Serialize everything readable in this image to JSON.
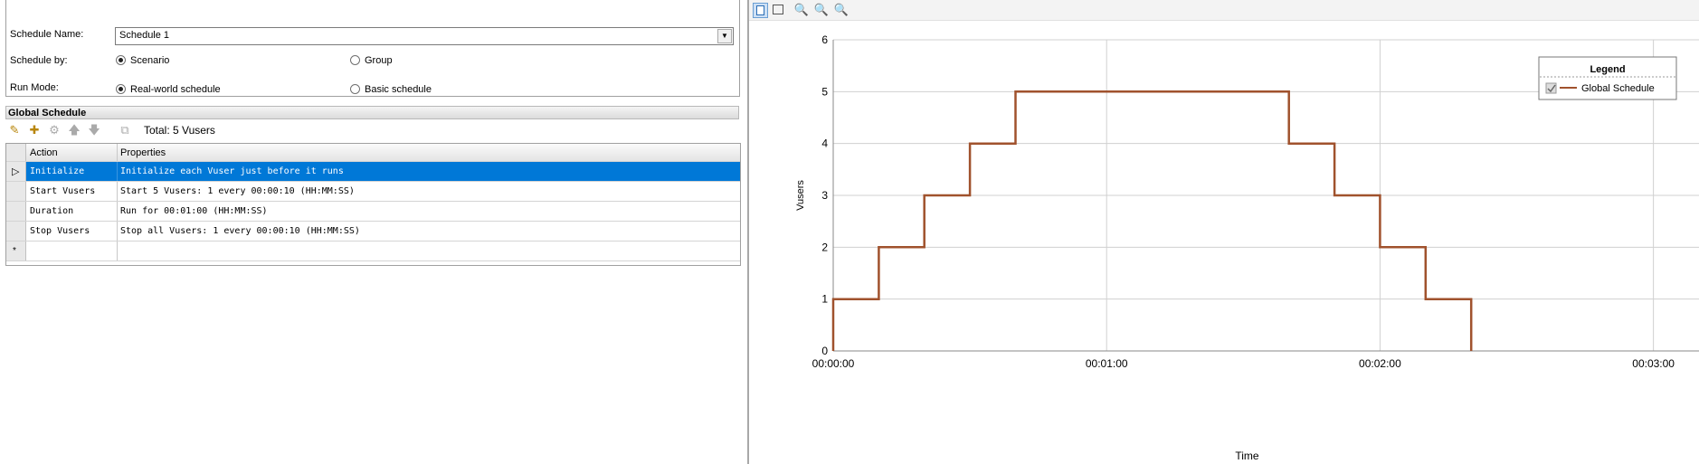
{
  "toolbar": {
    "icons": [
      "new-schedule-icon",
      "delete-icon",
      "rename-icon",
      "schedule-clock-icon"
    ]
  },
  "form": {
    "schedule_name_label": "Schedule Name:",
    "schedule_name_value": "Schedule 1",
    "schedule_by_label": "Schedule by:",
    "schedule_by_options": [
      "Scenario",
      "Group"
    ],
    "schedule_by_selected": "Scenario",
    "run_mode_label": "Run Mode:",
    "run_mode_options": [
      "Real-world schedule",
      "Basic schedule"
    ],
    "run_mode_selected": "Real-world schedule"
  },
  "global_schedule": {
    "title": "Global Schedule",
    "total_label": "Total: 5 Vusers",
    "columns": [
      "Action",
      "Properties"
    ],
    "rows": [
      {
        "action": "Initialize",
        "properties": "Initialize each Vuser just before it runs",
        "selected": true
      },
      {
        "action": "Start  Vusers",
        "properties": "Start 5 Vusers: 1 every 00:00:10 (HH:MM:SS)"
      },
      {
        "action": "Duration",
        "properties": "Run for 00:01:00 (HH:MM:SS)"
      },
      {
        "action": "Stop Vusers",
        "properties": "Stop all Vusers: 1 every 00:00:10 (HH:MM:SS)"
      }
    ],
    "new_row_marker": "*"
  },
  "colors": {
    "selection": "#0078d7",
    "series": "#a0522d",
    "grid": "#d0d0d0"
  },
  "chart_data": {
    "type": "line",
    "xlabel": "Time",
    "ylabel": "Vusers",
    "ylim": [
      0,
      6
    ],
    "xlim_seconds": [
      0,
      190
    ],
    "x_ticks": [
      "00:00:00",
      "00:01:00",
      "00:02:00",
      "00:03:00"
    ],
    "y_ticks": [
      "0",
      "1",
      "2",
      "3",
      "4",
      "5",
      "6"
    ],
    "grid": true,
    "legend": {
      "title": "Legend",
      "position": "top-right",
      "entries": [
        "Global Schedule"
      ]
    },
    "series": [
      {
        "name": "Global Schedule",
        "step": true,
        "x_seconds": [
          0,
          0,
          10,
          10,
          20,
          20,
          30,
          30,
          40,
          40,
          100,
          100,
          110,
          110,
          120,
          120,
          130,
          130,
          140,
          140
        ],
        "y": [
          0,
          1,
          1,
          2,
          2,
          3,
          3,
          4,
          4,
          5,
          5,
          4,
          4,
          3,
          3,
          2,
          2,
          1,
          1,
          0
        ]
      }
    ]
  }
}
